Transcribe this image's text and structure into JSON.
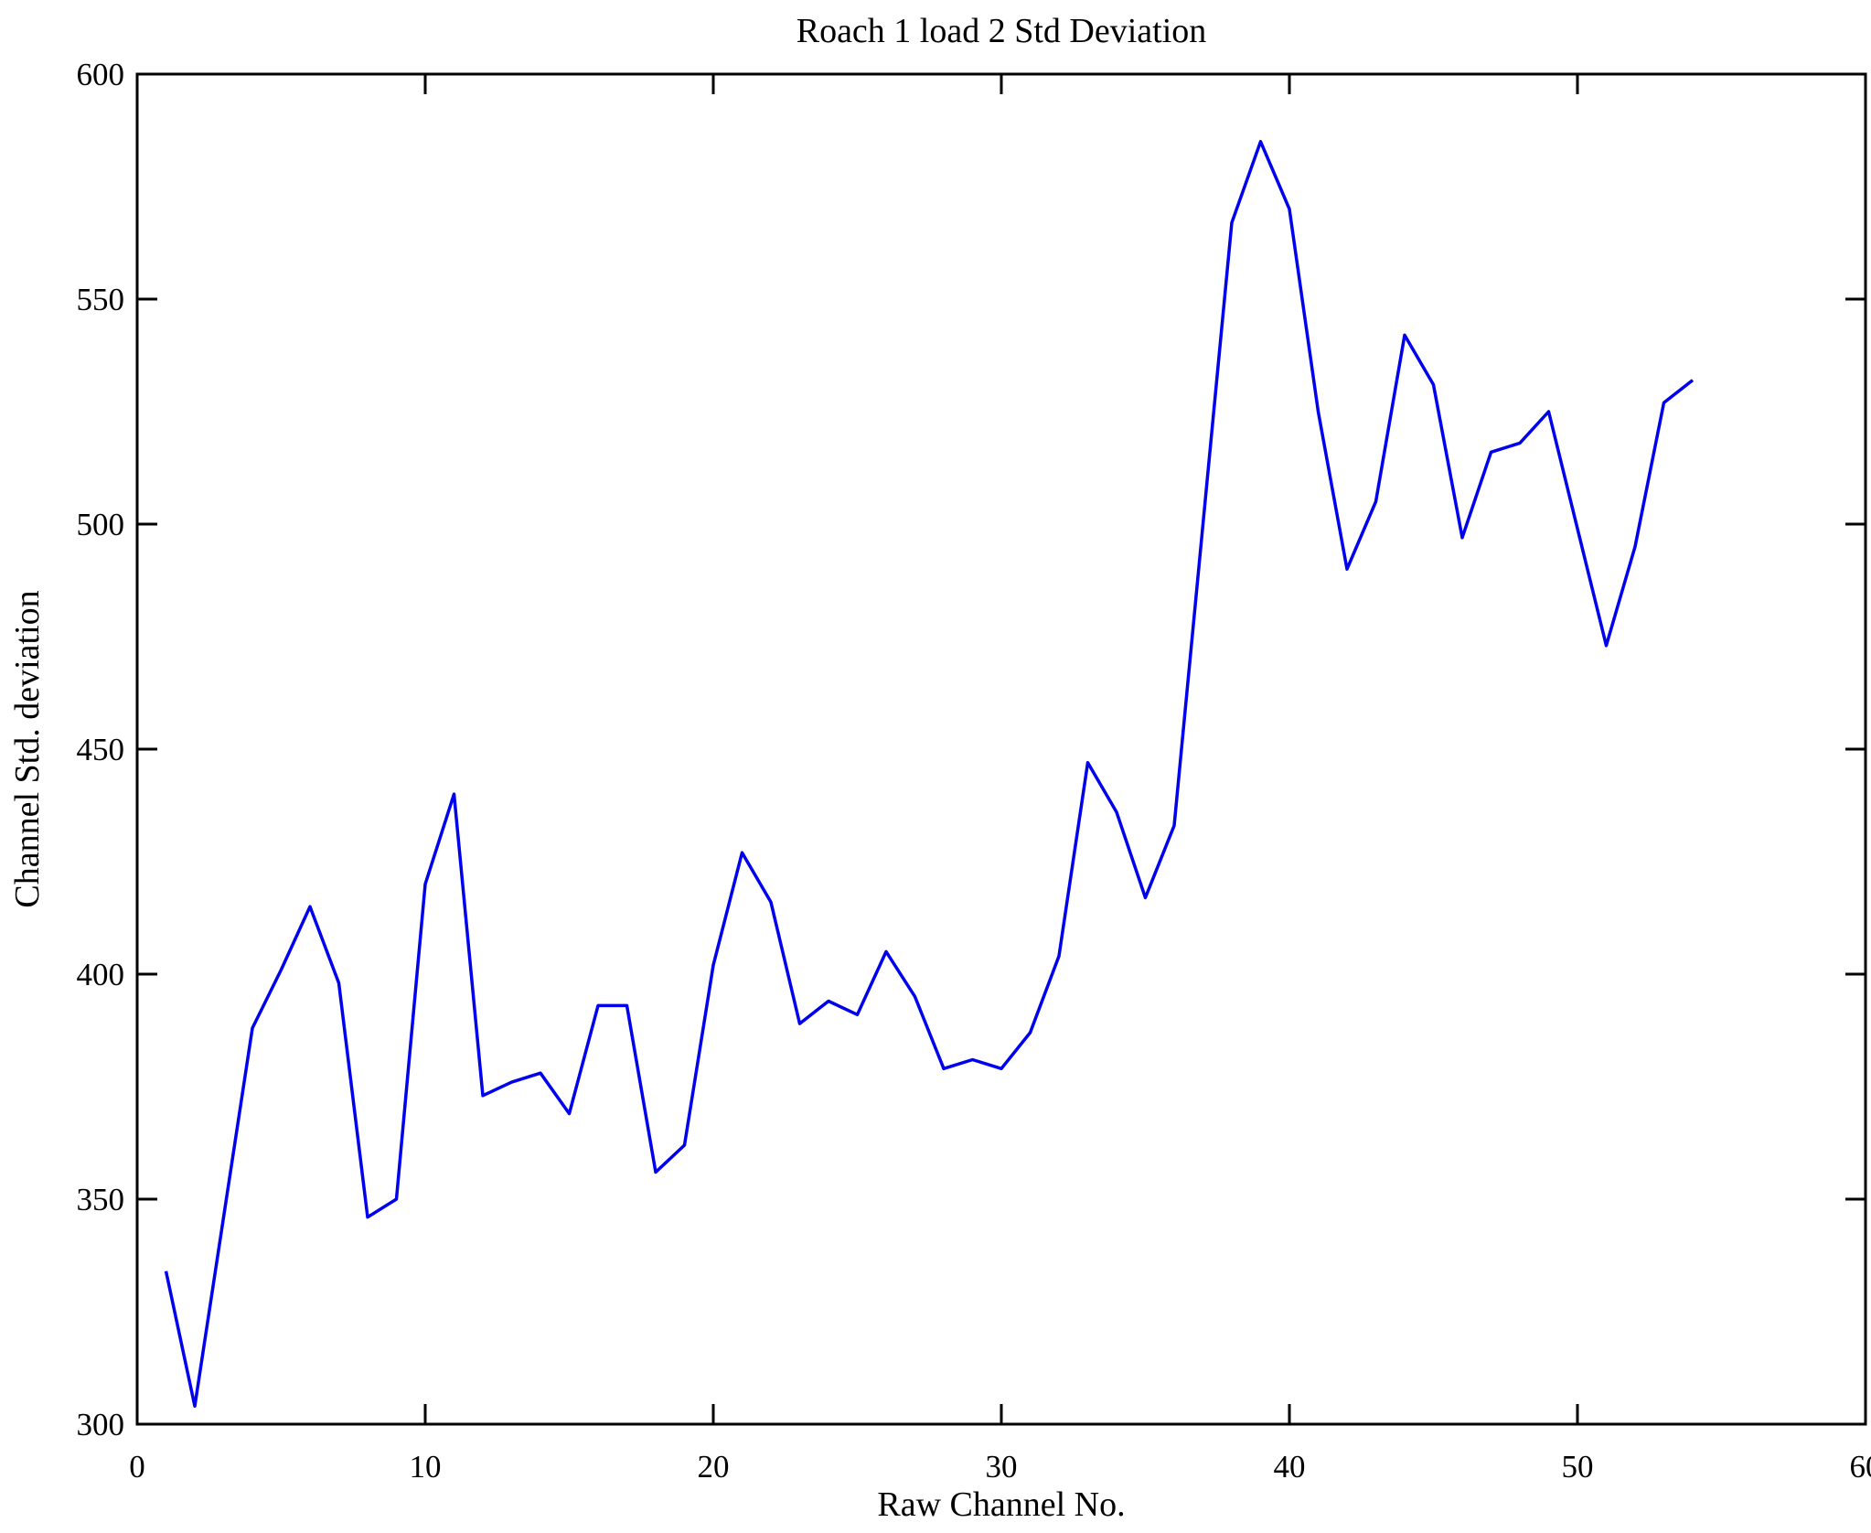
{
  "page": {
    "background": "#FFFFFF",
    "frame_color": "#000000"
  },
  "chart_data": {
    "type": "line",
    "title": "Roach 1 load 2 Std Deviation",
    "xlabel": "Raw Channel No.",
    "ylabel": "Channel Std. deviation",
    "xlim": [
      0,
      60
    ],
    "ylim": [
      300,
      600
    ],
    "xticks": [
      0,
      10,
      20,
      30,
      40,
      50,
      60
    ],
    "yticks": [
      300,
      350,
      400,
      450,
      500,
      550,
      600
    ],
    "grid": false,
    "legend": "none",
    "line_color": "#0000EE",
    "marker": "none",
    "series": [
      {
        "name": "Channel Std. deviation",
        "x": [
          1,
          2,
          3,
          4,
          5,
          6,
          7,
          8,
          9,
          10,
          11,
          12,
          13,
          14,
          15,
          16,
          17,
          18,
          19,
          20,
          21,
          22,
          23,
          24,
          25,
          26,
          27,
          28,
          29,
          30,
          31,
          32,
          33,
          34,
          35,
          36,
          37,
          38,
          39,
          40,
          41,
          42,
          43,
          44,
          45,
          46,
          47,
          48,
          49,
          50,
          51,
          52,
          53,
          54
        ],
        "values": [
          334,
          304,
          346,
          388,
          401,
          415,
          398,
          346,
          350,
          420,
          440,
          373,
          376,
          378,
          369,
          393,
          393,
          356,
          362,
          402,
          427,
          416,
          389,
          394,
          391,
          405,
          395,
          379,
          381,
          379,
          387,
          404,
          447,
          436,
          417,
          433,
          500,
          567,
          585,
          570,
          525,
          490,
          505,
          542,
          531,
          497,
          516,
          518,
          525,
          499,
          473,
          495,
          527,
          532
        ]
      }
    ]
  }
}
